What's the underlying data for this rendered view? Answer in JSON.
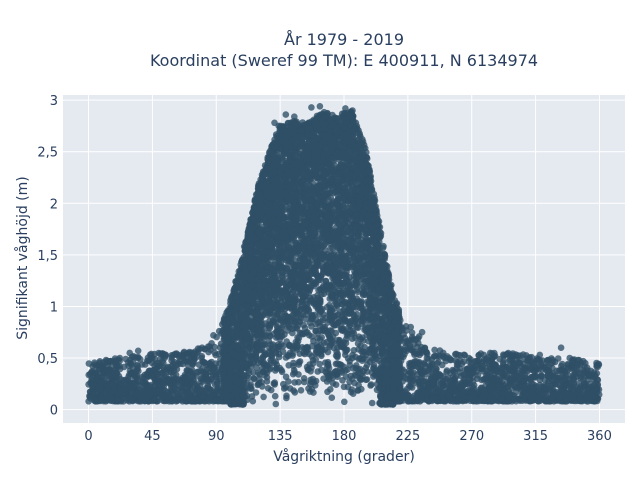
{
  "chart_data": {
    "type": "scatter",
    "title": [
      "År 1979 - 2019",
      "Koordinat (Sweref 99 TM): E 400911, N 6134974"
    ],
    "xlabel": "Vågriktning (grader)",
    "ylabel": "Signifikant våghöjd (m)",
    "xlim": [
      -18,
      378
    ],
    "ylim": [
      -0.13,
      3.05
    ],
    "x_ticks": [
      {
        "value": 0,
        "label": "0"
      },
      {
        "value": 45,
        "label": "45"
      },
      {
        "value": 90,
        "label": "90"
      },
      {
        "value": 135,
        "label": "135"
      },
      {
        "value": 180,
        "label": "180"
      },
      {
        "value": 225,
        "label": "225"
      },
      {
        "value": 270,
        "label": "270"
      },
      {
        "value": 315,
        "label": "315"
      },
      {
        "value": 360,
        "label": "360"
      }
    ],
    "y_ticks": [
      {
        "value": 0,
        "label": "0"
      },
      {
        "value": 0.5,
        "label": "0,5"
      },
      {
        "value": 1,
        "label": "1"
      },
      {
        "value": 1.5,
        "label": "1,5"
      },
      {
        "value": 2,
        "label": "2"
      },
      {
        "value": 2.5,
        "label": "2,5"
      },
      {
        "value": 3,
        "label": "3"
      }
    ],
    "grid": true,
    "legend": "none",
    "colors": {
      "marker": "#2f5066",
      "plot_bg": "#e5e9f0",
      "grid": "#ffffff",
      "text": "#2a3f5f"
    },
    "envelope": {
      "description_values": "upper envelope of significant wave height by direction",
      "x": [
        0,
        20,
        45,
        60,
        80,
        90,
        100,
        110,
        120,
        130,
        135,
        145,
        155,
        165,
        175,
        185,
        195,
        205,
        215,
        225,
        240,
        260,
        280,
        300,
        320,
        340,
        360
      ],
      "ymax": [
        0.45,
        0.5,
        0.55,
        0.55,
        0.6,
        0.7,
        1.05,
        1.6,
        2.2,
        2.6,
        2.75,
        2.8,
        2.78,
        2.9,
        2.85,
        2.9,
        2.55,
        1.8,
        1.1,
        0.8,
        0.6,
        0.55,
        0.55,
        0.55,
        0.5,
        0.5,
        0.45
      ]
    },
    "points": [
      {
        "x": 157,
        "y": 2.93
      },
      {
        "x": 163,
        "y": 2.94
      },
      {
        "x": 181,
        "y": 2.92
      },
      {
        "x": 186,
        "y": 2.9
      },
      {
        "x": 139,
        "y": 2.86
      },
      {
        "x": 145,
        "y": 2.84
      },
      {
        "x": 150,
        "y": 2.7
      },
      {
        "x": 161,
        "y": 2.74
      },
      {
        "x": 170,
        "y": 2.66
      },
      {
        "x": 131,
        "y": 2.78
      },
      {
        "x": 134,
        "y": 2.75
      },
      {
        "x": 146,
        "y": 2.75
      },
      {
        "x": 100,
        "y": 1.06
      },
      {
        "x": 104,
        "y": 0.97
      },
      {
        "x": 88,
        "y": 0.72
      },
      {
        "x": 233,
        "y": 0.71
      },
      {
        "x": 227,
        "y": 0.8
      },
      {
        "x": 208,
        "y": 1.05
      },
      {
        "x": 222,
        "y": 0.73
      },
      {
        "x": 235,
        "y": 0.75
      },
      {
        "x": 250,
        "y": 0.55
      },
      {
        "x": 268,
        "y": 0.5
      },
      {
        "x": 283,
        "y": 0.55
      },
      {
        "x": 318,
        "y": 0.53
      },
      {
        "x": 333,
        "y": 0.6
      },
      {
        "x": 358,
        "y": 0.42
      },
      {
        "x": 3,
        "y": 0.42
      },
      {
        "x": 8,
        "y": 0.43
      },
      {
        "x": 22,
        "y": 0.5
      },
      {
        "x": 29,
        "y": 0.55
      },
      {
        "x": 35,
        "y": 0.57
      },
      {
        "x": 45,
        "y": 0.5
      },
      {
        "x": 61,
        "y": 0.54
      },
      {
        "x": 70,
        "y": 0.55
      },
      {
        "x": 75,
        "y": 0.54
      },
      {
        "x": 80,
        "y": 0.6
      },
      {
        "x": 295,
        "y": 0.54
      },
      {
        "x": 339,
        "y": 0.5
      },
      {
        "x": 350,
        "y": 0.45
      }
    ]
  }
}
